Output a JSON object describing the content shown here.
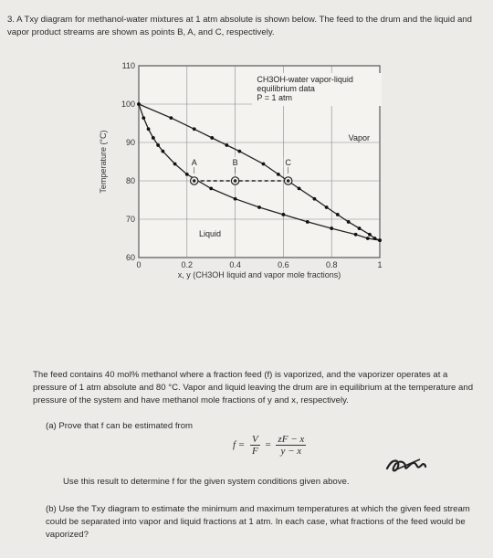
{
  "header": {
    "number": "3.",
    "text": "A Txy diagram for methanol-water mixtures at 1 atm absolute is shown below. The feed to the drum and the liquid and vapor product streams are shown as points B, A, and C, respectively."
  },
  "chart_data": {
    "type": "line",
    "annotation_lines": [
      "CH3OH-water vapor-liquid",
      "equilibrium data",
      "P = 1 atm"
    ],
    "xlabel": "x, y (CH3OH liquid and vapor mole fractions)",
    "ylabel": "Temperature (°C)",
    "x_ticks": [
      "0",
      "0.2",
      "0.4",
      "0.6",
      "0.8",
      "1"
    ],
    "y_ticks": [
      "60",
      "70",
      "80",
      "90",
      "100",
      "110"
    ],
    "xlim": [
      0,
      1
    ],
    "ylim": [
      60,
      110
    ],
    "grid": true,
    "region_labels": {
      "vapor": "Vapor",
      "liquid": "Liquid"
    },
    "series": [
      {
        "role": "bubble-point",
        "x": [
          0.0,
          0.02,
          0.04,
          0.06,
          0.08,
          0.1,
          0.15,
          0.2,
          0.3,
          0.4,
          0.5,
          0.6,
          0.7,
          0.8,
          0.9,
          0.95,
          1.0
        ],
        "y": [
          100.0,
          96.4,
          93.5,
          91.2,
          89.3,
          87.7,
          84.4,
          81.7,
          78.0,
          75.3,
          73.1,
          71.2,
          69.3,
          67.6,
          66.0,
          65.0,
          64.5
        ]
      },
      {
        "role": "dew-point",
        "x": [
          0.0,
          0.134,
          0.23,
          0.304,
          0.365,
          0.418,
          0.517,
          0.579,
          0.665,
          0.729,
          0.779,
          0.825,
          0.87,
          0.915,
          0.958,
          0.979,
          1.0
        ],
        "y": [
          100.0,
          96.4,
          93.5,
          91.2,
          89.3,
          87.7,
          84.4,
          81.7,
          78.0,
          75.3,
          73.1,
          71.2,
          69.3,
          67.6,
          66.0,
          65.0,
          64.5
        ]
      }
    ],
    "points": [
      {
        "label": "A",
        "x": 0.23,
        "y": 80
      },
      {
        "label": "B",
        "x": 0.4,
        "y": 80
      },
      {
        "label": "C",
        "x": 0.62,
        "y": 80
      }
    ],
    "tie_line_y": 80
  },
  "body": {
    "feed_text": "The feed contains 40 mol% methanol where a fraction feed (f) is vaporized, and the vaporizer operates at a pressure of 1 atm absolute and 80 °C. Vapor and liquid leaving the drum are in equilibrium at the temperature and pressure of the system and have methanol mole fractions of y and x, respectively.",
    "part_a": "(a)  Prove that f can be estimated from",
    "formula": {
      "f": "f =",
      "v_num": "V",
      "v_den": "F",
      "eq": "=",
      "z_num": "zF − x",
      "z_den": "y − x"
    },
    "use_result": "Use this result to determine f for the given system conditions given above.",
    "part_b": "(b)  Use the Txy diagram to estimate the minimum and maximum temperatures at which the given feed stream could be separated into vapor and liquid fractions at 1 atm. In each case, what fractions of the feed would be vaporized?"
  }
}
